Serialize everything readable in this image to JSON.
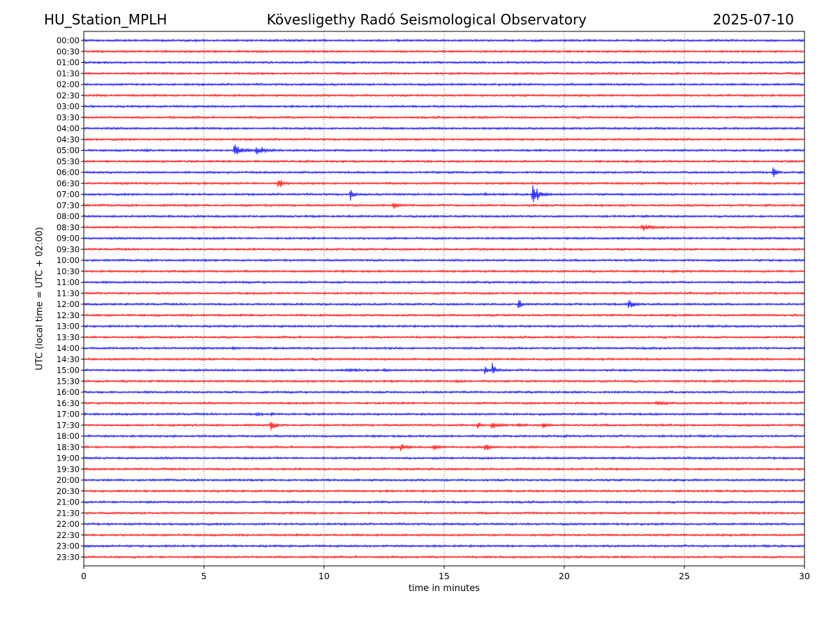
{
  "header": {
    "station": "HU_Station_MPLH",
    "title": "Kövesligethy Radó Seismological Observatory",
    "date": "2025-07-10"
  },
  "chart_data": {
    "type": "line",
    "title": "Kövesligethy Radó Seismological Observatory",
    "xlabel": "time in minutes",
    "ylabel": "UTC (local time = UTC + 02:00)",
    "xlim": [
      0,
      30
    ],
    "xticks": [
      "0",
      "5",
      "10",
      "15",
      "20",
      "25",
      "30"
    ],
    "vertical_gridlines": [
      5,
      10,
      15,
      20,
      25
    ],
    "colors": {
      "even_rows": "#0000ff",
      "odd_rows": "#ff0000",
      "grid": "#000000"
    },
    "rows": [
      "00:00",
      "00:30",
      "01:00",
      "01:30",
      "02:00",
      "02:30",
      "03:00",
      "03:30",
      "04:00",
      "04:30",
      "05:00",
      "05:30",
      "06:00",
      "06:30",
      "07:00",
      "07:30",
      "08:00",
      "08:30",
      "09:00",
      "09:30",
      "10:00",
      "10:30",
      "11:00",
      "11:30",
      "12:00",
      "12:30",
      "13:00",
      "13:30",
      "14:00",
      "14:30",
      "15:00",
      "15:30",
      "16:00",
      "16:30",
      "17:00",
      "17:30",
      "18:00",
      "18:30",
      "19:00",
      "19:30",
      "20:00",
      "20:30",
      "21:00",
      "21:30",
      "22:00",
      "22:30",
      "23:00",
      "23:30"
    ],
    "events": [
      {
        "row": "05:00",
        "minute": 2.6,
        "amplitude": 0.2,
        "duration": 0.4
      },
      {
        "row": "05:00",
        "minute": 6.3,
        "amplitude": 1.6,
        "duration": 1.0
      },
      {
        "row": "05:00",
        "minute": 7.2,
        "amplitude": 0.9,
        "duration": 1.2
      },
      {
        "row": "05:00",
        "minute": 14.5,
        "amplitude": 0.35,
        "duration": 0.3
      },
      {
        "row": "06:00",
        "minute": 28.7,
        "amplitude": 1.4,
        "duration": 0.5
      },
      {
        "row": "06:30",
        "minute": 8.1,
        "amplitude": 1.4,
        "duration": 0.6
      },
      {
        "row": "07:00",
        "minute": 11.1,
        "amplitude": 1.1,
        "duration": 0.5
      },
      {
        "row": "07:00",
        "minute": 16.7,
        "amplitude": 0.3,
        "duration": 0.3
      },
      {
        "row": "07:00",
        "minute": 18.7,
        "amplitude": 2.6,
        "duration": 0.9
      },
      {
        "row": "07:30",
        "minute": 12.9,
        "amplitude": 0.6,
        "duration": 0.9
      },
      {
        "row": "08:30",
        "minute": 23.3,
        "amplitude": 0.6,
        "duration": 1.6
      },
      {
        "row": "12:00",
        "minute": 18.1,
        "amplitude": 1.9,
        "duration": 0.3
      },
      {
        "row": "12:00",
        "minute": 22.7,
        "amplitude": 1.2,
        "duration": 0.8
      },
      {
        "row": "14:00",
        "minute": 6.2,
        "amplitude": 0.3,
        "duration": 0.6
      },
      {
        "row": "15:00",
        "minute": 11.0,
        "amplitude": 0.25,
        "duration": 1.2
      },
      {
        "row": "15:00",
        "minute": 12.5,
        "amplitude": 0.35,
        "duration": 0.4
      },
      {
        "row": "15:00",
        "minute": 16.7,
        "amplitude": 1.1,
        "duration": 0.4
      },
      {
        "row": "15:00",
        "minute": 17.0,
        "amplitude": 1.3,
        "duration": 0.5
      },
      {
        "row": "15:30",
        "minute": 15.5,
        "amplitude": 0.2,
        "duration": 0.6
      },
      {
        "row": "16:30",
        "minute": 23.9,
        "amplitude": 0.35,
        "duration": 1.0
      },
      {
        "row": "17:00",
        "minute": 7.2,
        "amplitude": 0.5,
        "duration": 0.5
      },
      {
        "row": "17:00",
        "minute": 7.8,
        "amplitude": 0.4,
        "duration": 0.3
      },
      {
        "row": "17:00",
        "minute": 23.8,
        "amplitude": 0.2,
        "duration": 0.4
      },
      {
        "row": "17:30",
        "minute": 7.8,
        "amplitude": 1.2,
        "duration": 0.6
      },
      {
        "row": "17:30",
        "minute": 16.4,
        "amplitude": 1.0,
        "duration": 0.4
      },
      {
        "row": "17:30",
        "minute": 17.0,
        "amplitude": 0.7,
        "duration": 0.9
      },
      {
        "row": "17:30",
        "minute": 18.1,
        "amplitude": 0.4,
        "duration": 0.7
      },
      {
        "row": "17:30",
        "minute": 19.1,
        "amplitude": 0.9,
        "duration": 0.5
      },
      {
        "row": "18:00",
        "minute": 20.0,
        "amplitude": 0.15,
        "duration": 0.3
      },
      {
        "row": "18:30",
        "minute": 12.8,
        "amplitude": 0.3,
        "duration": 0.8
      },
      {
        "row": "18:30",
        "minute": 13.2,
        "amplitude": 0.7,
        "duration": 0.7
      },
      {
        "row": "18:30",
        "minute": 14.6,
        "amplitude": 0.8,
        "duration": 0.5
      },
      {
        "row": "18:30",
        "minute": 16.7,
        "amplitude": 0.9,
        "duration": 0.6
      },
      {
        "row": "20:00",
        "minute": 10.1,
        "amplitude": 0.2,
        "duration": 0.2
      }
    ]
  }
}
